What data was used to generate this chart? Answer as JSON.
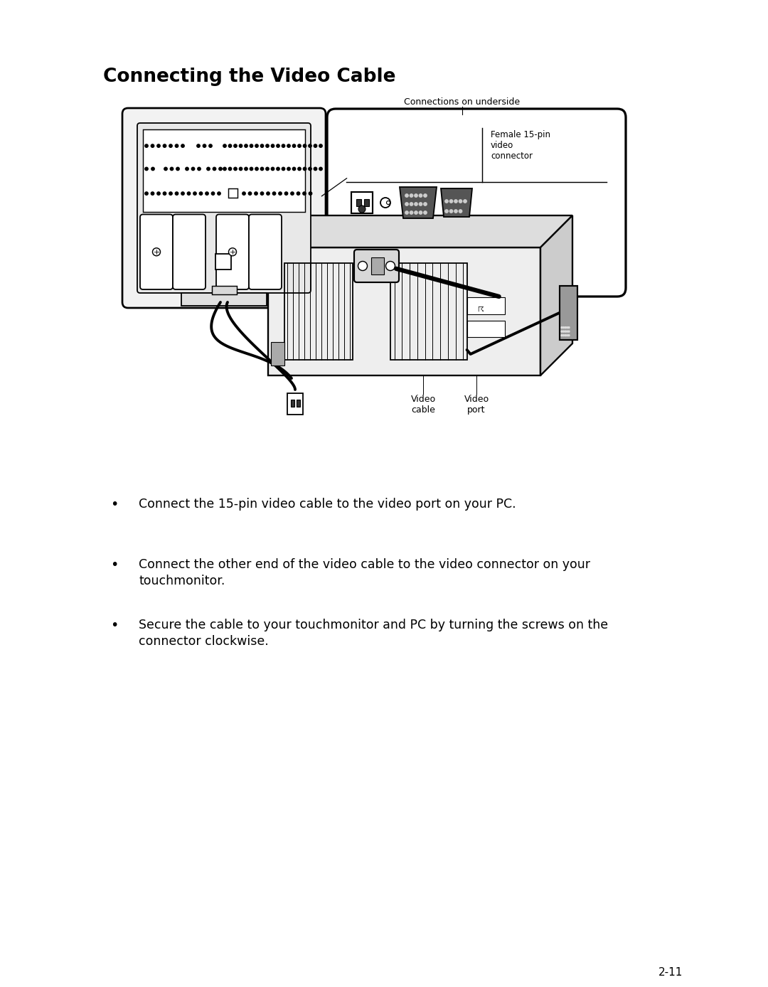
{
  "title": "Connecting the Video Cable",
  "title_fontsize": 19,
  "background_color": "#ffffff",
  "text_color": "#000000",
  "page_number": "2-11",
  "bullet_points": [
    "Connect the 15-pin video cable to the video port on your PC.",
    "Connect the other end of the video cable to the video connector on your\ntouchmonitor.",
    "Secure the cable to your touchmonitor and PC by turning the screws on the\nconnector clockwise."
  ],
  "connections_label": "Connections on underside",
  "female_connector_label": "Female 15-pin\nvideo\nconnector",
  "video_cable_label": "Video\ncable",
  "video_port_label": "Video\nport"
}
